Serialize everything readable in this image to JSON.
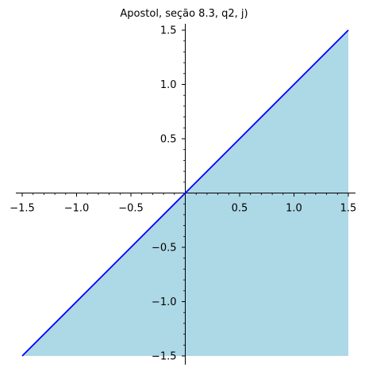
{
  "chart_data": {
    "type": "area",
    "title": "Apostol, seção 8.3, q2, j)",
    "xlabel": "",
    "ylabel": "",
    "xlim": [
      -1.5,
      1.5
    ],
    "ylim": [
      -1.5,
      1.5
    ],
    "grid": false,
    "axes_through_origin": true,
    "x_ticks": [
      {
        "value": -1.5,
        "label": "−1.5"
      },
      {
        "value": -1.0,
        "label": "−1.0"
      },
      {
        "value": -0.5,
        "label": "−0.5"
      },
      {
        "value": 0.5,
        "label": "0.5"
      },
      {
        "value": 1.0,
        "label": "1.0"
      },
      {
        "value": 1.5,
        "label": "1.5"
      }
    ],
    "y_ticks": [
      {
        "value": 1.5,
        "label": "1.5"
      },
      {
        "value": 1.0,
        "label": "1.0"
      },
      {
        "value": 0.5,
        "label": "0.5"
      },
      {
        "value": -0.5,
        "label": "−0.5"
      },
      {
        "value": -1.0,
        "label": "−1.0"
      },
      {
        "value": -1.5,
        "label": "−1.5"
      }
    ],
    "minor_tick_step": 0.1,
    "series": [
      {
        "type": "line",
        "color": "#0000ff",
        "x": [
          -1.5,
          1.5
        ],
        "y": [
          -1.5,
          1.5
        ]
      },
      {
        "type": "area",
        "color": "#add8e6",
        "x": [
          -1.5,
          1.5,
          1.5
        ],
        "y": [
          -1.5,
          1.5,
          -1.5
        ]
      }
    ]
  }
}
